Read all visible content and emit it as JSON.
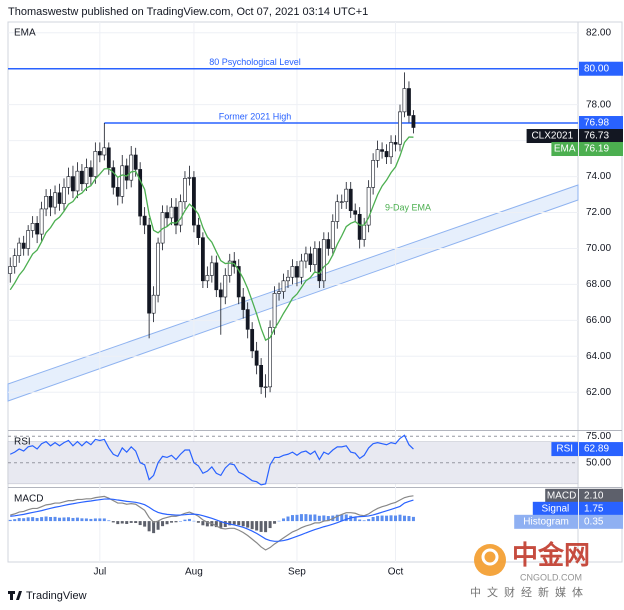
{
  "header": {
    "text": "Thomaswestw published on TradingView.com, Oct 07, 2021 03:14 UTC+1"
  },
  "footer": {
    "brand": "TradingView"
  },
  "watermark": {
    "name": "中金网",
    "site": "CNGOLD.COM",
    "tagline": "中文财经新媒体"
  },
  "chart_data": [
    {
      "type": "candlestick",
      "symbol": "CLX2021",
      "categories": [
        null,
        null,
        null,
        null,
        null,
        null,
        null,
        null,
        null,
        null,
        null,
        null,
        null,
        null,
        null,
        null,
        null,
        null,
        null,
        null,
        "Jul",
        null,
        null,
        null,
        null,
        null,
        null,
        null,
        null,
        null,
        null,
        null,
        null,
        null,
        null,
        null,
        null,
        null,
        null,
        null,
        null,
        "Aug",
        null,
        null,
        null,
        null,
        null,
        null,
        null,
        null,
        null,
        null,
        null,
        null,
        null,
        null,
        null,
        null,
        null,
        null,
        null,
        null,
        null,
        null,
        "Sep",
        null,
        null,
        null,
        null,
        null,
        null,
        null,
        null,
        null,
        null,
        null,
        null,
        null,
        null,
        null,
        null,
        null,
        null,
        null,
        null,
        null,
        "Oct",
        null,
        null,
        null,
        null
      ],
      "open": [
        68.6,
        69.0,
        69.6,
        70.3,
        70.0,
        71.0,
        71.4,
        70.8,
        72.2,
        72.9,
        72.3,
        73.1,
        72.5,
        73.4,
        74.0,
        73.2,
        74.3,
        73.6,
        74.5,
        74.0,
        75.4,
        75.2,
        75.6,
        74.5,
        73.4,
        72.9,
        74.6,
        73.8,
        75.2,
        74.4,
        71.8,
        71.3,
        66.4,
        67.4,
        70.3,
        72.0,
        71.7,
        72.3,
        71.3,
        72.6,
        73.9,
        73.95,
        71.3,
        70.6,
        68.2,
        68.5,
        69.2,
        67.7,
        67.3,
        68.5,
        69.3,
        69.0,
        67.3,
        66.6,
        65.5,
        64.3,
        63.5,
        62.3,
        62.3,
        65.6,
        67.5,
        67.6,
        68.2,
        68.4,
        69.0,
        68.4,
        69.3,
        69.7,
        69.1,
        70.0,
        68.2,
        70.5,
        70.0,
        71.5,
        72.6,
        72.6,
        73.3,
        72.1,
        71.9,
        70.5,
        71.3,
        73.4,
        74.9,
        75.5,
        75.4,
        75.1,
        75.9,
        75.8,
        77.6,
        78.9,
        77.4
      ],
      "high": [
        69.5,
        70.0,
        70.6,
        70.7,
        71.3,
        71.8,
        71.8,
        72.6,
        73.3,
        73.3,
        73.5,
        73.6,
        73.9,
        74.5,
        74.6,
        74.8,
        74.7,
        75.0,
        74.9,
        75.9,
        75.9,
        76.98,
        75.9,
        74.9,
        74.0,
        75.2,
        75.0,
        75.7,
        75.6,
        74.8,
        72.3,
        71.7,
        67.9,
        70.6,
        72.4,
        72.4,
        72.8,
        72.8,
        73.0,
        74.3,
        74.6,
        74.3,
        71.7,
        70.9,
        69.0,
        69.6,
        69.6,
        68.1,
        68.9,
        69.7,
        69.8,
        69.4,
        67.8,
        67.0,
        65.9,
        64.8,
        63.9,
        63.0,
        66.0,
        67.9,
        68.1,
        68.6,
        68.8,
        69.4,
        69.3,
        69.7,
        70.1,
        70.1,
        70.4,
        70.4,
        70.9,
        70.9,
        71.9,
        73.0,
        73.0,
        73.7,
        73.7,
        72.5,
        72.3,
        71.7,
        73.8,
        75.3,
        76.0,
        75.9,
        75.8,
        76.3,
        76.3,
        78.0,
        79.8,
        79.3,
        77.7
      ],
      "low": [
        68.1,
        68.6,
        69.2,
        69.6,
        69.6,
        70.6,
        70.3,
        70.4,
        71.8,
        71.8,
        71.9,
        72.1,
        72.1,
        73.0,
        72.8,
        72.8,
        73.2,
        73.2,
        73.5,
        73.6,
        74.8,
        74.9,
        74.1,
        73.0,
        72.4,
        72.5,
        73.3,
        73.4,
        74.0,
        71.3,
        70.8,
        65.0,
        65.9,
        67.0,
        69.9,
        71.2,
        71.3,
        70.8,
        70.9,
        72.2,
        73.5,
        70.9,
        70.2,
        67.8,
        67.8,
        68.1,
        67.3,
        65.2,
        66.9,
        68.1,
        68.6,
        66.9,
        66.1,
        65.0,
        63.9,
        63.0,
        61.9,
        61.7,
        62.0,
        65.2,
        67.1,
        67.2,
        67.8,
        68.0,
        67.9,
        68.0,
        68.9,
        68.7,
        68.7,
        67.8,
        67.8,
        69.6,
        69.6,
        71.1,
        72.2,
        72.2,
        71.7,
        71.5,
        70.0,
        70.1,
        70.9,
        73.0,
        74.5,
        75.0,
        74.7,
        74.7,
        75.4,
        75.4,
        77.3,
        77.0,
        76.4
      ],
      "close": [
        69.0,
        69.6,
        70.3,
        70.0,
        71.0,
        71.4,
        70.8,
        72.2,
        72.9,
        72.3,
        73.1,
        72.5,
        73.4,
        74.0,
        73.2,
        74.3,
        73.6,
        74.5,
        74.0,
        75.4,
        75.2,
        75.6,
        74.5,
        73.4,
        72.9,
        74.6,
        73.8,
        75.2,
        74.4,
        71.8,
        71.3,
        66.4,
        67.4,
        70.3,
        72.0,
        71.7,
        72.3,
        71.3,
        72.6,
        73.9,
        73.95,
        71.3,
        70.6,
        68.2,
        68.5,
        69.2,
        67.7,
        67.3,
        68.5,
        69.3,
        69.0,
        67.3,
        66.6,
        65.5,
        64.3,
        63.5,
        62.3,
        62.3,
        65.6,
        67.5,
        67.6,
        68.2,
        68.4,
        69.0,
        68.4,
        69.3,
        69.7,
        69.1,
        70.0,
        68.2,
        70.5,
        70.0,
        71.5,
        72.6,
        72.6,
        73.3,
        72.1,
        71.9,
        70.5,
        71.3,
        73.4,
        74.9,
        75.5,
        75.4,
        75.1,
        75.9,
        75.8,
        77.6,
        78.9,
        77.4,
        76.73
      ],
      "up_color": "#ffffff",
      "down_color": "#131722",
      "wick_color": "#131722",
      "series": [
        {
          "name": "EMA",
          "color": "#4caf50",
          "values": [
            67.7,
            68.08,
            68.52,
            68.82,
            69.26,
            69.69,
            69.91,
            70.37,
            70.88,
            71.16,
            71.55,
            71.74,
            72.07,
            72.46,
            72.61,
            72.95,
            73.08,
            73.36,
            73.49,
            73.87,
            74.14,
            74.43,
            74.44,
            74.23,
            73.96,
            74.09,
            74.03,
            74.26,
            74.29,
            73.79,
            73.29,
            71.91,
            71.01,
            70.87,
            71.1,
            71.22,
            71.44,
            71.41,
            71.65,
            72.1,
            72.47,
            72.24,
            71.91,
            71.17,
            70.64,
            70.35,
            69.82,
            69.32,
            69.16,
            69.19,
            69.15,
            68.78,
            68.34,
            67.77,
            67.08,
            66.36,
            65.55,
            64.9,
            65.04,
            65.53,
            65.94,
            66.39,
            66.79,
            67.23,
            67.46,
            67.83,
            68.2,
            68.38,
            68.7,
            68.6,
            68.98,
            69.18,
            69.64,
            70.23,
            70.7,
            71.22,
            71.4,
            71.5,
            71.3,
            71.3,
            71.72,
            72.36,
            72.99,
            73.47,
            73.8,
            74.22,
            74.54,
            75.15,
            75.9,
            76.2,
            76.19
          ]
        }
      ],
      "hlines": [
        {
          "value": 80,
          "label": "80.00",
          "text": "80 Psychological Level",
          "color": "#2962ff"
        },
        {
          "value": 76.98,
          "label": "76.98",
          "text": "Former 2021 High",
          "color": "#2962ff"
        }
      ],
      "annotations": [
        {
          "text": "9-Day EMA"
        }
      ],
      "ylim": [
        59.9,
        82.6
      ],
      "yticks": [
        {
          "value": 82,
          "label": "82.00"
        },
        {
          "value": 80,
          "label": "80.00"
        },
        {
          "value": 78,
          "label": "78.00"
        },
        {
          "value": 76,
          "label": "76.00"
        },
        {
          "value": 74,
          "label": "74.00"
        },
        {
          "value": 72,
          "label": "72.00"
        },
        {
          "value": 70,
          "label": "70.00"
        },
        {
          "value": 68,
          "label": "68.00"
        },
        {
          "value": 66,
          "label": "66.00"
        },
        {
          "value": 64,
          "label": "64.00"
        },
        {
          "value": 62,
          "label": "62.00"
        }
      ],
      "grid": true
    },
    {
      "type": "line",
      "series": [
        {
          "name": "RSI",
          "color": "#2962ff",
          "values": [
            58,
            60,
            63,
            61,
            65,
            66,
            63,
            68,
            70,
            66,
            69,
            66,
            69,
            71,
            66,
            70,
            66,
            70,
            67,
            72,
            71,
            72,
            64,
            58,
            56,
            64,
            60,
            65,
            61,
            50,
            48,
            34,
            38,
            50,
            56,
            55,
            57,
            53,
            58,
            62,
            62,
            50,
            47,
            40,
            42,
            46,
            40,
            38,
            45,
            49,
            48,
            41,
            39,
            36,
            33,
            32,
            29,
            30,
            48,
            55,
            55,
            57,
            58,
            60,
            57,
            60,
            61,
            58,
            61,
            53,
            60,
            58,
            62,
            65,
            65,
            66,
            60,
            59,
            54,
            57,
            64,
            68,
            69,
            68,
            67,
            69,
            68,
            73,
            76,
            67,
            62.89
          ]
        }
      ],
      "band": [
        30,
        70
      ],
      "ylim": [
        27,
        80
      ],
      "yticks": [
        {
          "value": 75,
          "label": "75.00"
        },
        {
          "value": 50,
          "label": "50.00"
        }
      ]
    },
    {
      "type": "macd",
      "series": [
        {
          "name": "MACD",
          "color": "#888888",
          "last_label": "2.10",
          "values": [
            0.5,
            0.6,
            0.75,
            0.8,
            0.95,
            1.05,
            1.05,
            1.2,
            1.35,
            1.4,
            1.5,
            1.5,
            1.6,
            1.7,
            1.7,
            1.8,
            1.8,
            1.85,
            1.85,
            1.95,
            2.0,
            2.05,
            1.9,
            1.7,
            1.5,
            1.5,
            1.4,
            1.45,
            1.4,
            1.15,
            0.9,
            0.3,
            -0.1,
            0.0,
            0.2,
            0.3,
            0.4,
            0.4,
            0.5,
            0.65,
            0.75,
            0.6,
            0.4,
            0.1,
            -0.1,
            -0.2,
            -0.4,
            -0.6,
            -0.65,
            -0.6,
            -0.6,
            -0.75,
            -0.95,
            -1.2,
            -1.5,
            -1.8,
            -2.15,
            -2.4,
            -2.2,
            -1.9,
            -1.65,
            -1.4,
            -1.15,
            -0.9,
            -0.75,
            -0.55,
            -0.4,
            -0.3,
            -0.15,
            -0.15,
            0.0,
            0.05,
            0.2,
            0.4,
            0.55,
            0.7,
            0.7,
            0.65,
            0.5,
            0.45,
            0.6,
            0.85,
            1.05,
            1.2,
            1.3,
            1.45,
            1.55,
            1.75,
            1.95,
            2.05,
            2.1
          ]
        },
        {
          "name": "Signal",
          "color": "#2962ff",
          "values": [
            0.4,
            0.44,
            0.5,
            0.56,
            0.64,
            0.72,
            0.79,
            0.87,
            0.97,
            1.06,
            1.15,
            1.22,
            1.3,
            1.38,
            1.44,
            1.51,
            1.57,
            1.63,
            1.67,
            1.73,
            1.78,
            1.83,
            1.84,
            1.81,
            1.75,
            1.7,
            1.64,
            1.6,
            1.56,
            1.48,
            1.36,
            1.15,
            0.9,
            0.72,
            0.62,
            0.56,
            0.53,
            0.5,
            0.5,
            0.53,
            0.57,
            0.58,
            0.54,
            0.45,
            0.34,
            0.23,
            0.1,
            -0.04,
            -0.16,
            -0.25,
            -0.32,
            -0.41,
            -0.52,
            -0.66,
            -0.83,
            -1.02,
            -1.25,
            -1.48,
            -1.62,
            -1.68,
            -1.67,
            -1.62,
            -1.53,
            -1.4,
            -1.27,
            -1.13,
            -0.98,
            -0.84,
            -0.7,
            -0.59,
            -0.47,
            -0.37,
            -0.26,
            -0.13,
            0.01,
            0.15,
            0.26,
            0.34,
            0.37,
            0.39,
            0.43,
            0.51,
            0.62,
            0.74,
            0.85,
            0.97,
            1.09,
            1.22,
            1.5,
            1.63,
            1.75
          ]
        },
        {
          "name": "Histogram",
          "color": "#5b8def",
          "negative_color": "#5d606b",
          "values": [
            0.1,
            0.16,
            0.25,
            0.24,
            0.31,
            0.33,
            0.26,
            0.33,
            0.38,
            0.34,
            0.35,
            0.28,
            0.3,
            0.32,
            0.26,
            0.29,
            0.23,
            0.22,
            0.18,
            0.22,
            0.22,
            0.22,
            0.06,
            -0.11,
            -0.25,
            -0.2,
            -0.24,
            -0.15,
            -0.16,
            -0.33,
            -0.46,
            -0.85,
            -1.0,
            -0.72,
            -0.42,
            -0.26,
            -0.13,
            -0.1,
            0.0,
            0.12,
            0.18,
            0.02,
            -0.14,
            -0.35,
            -0.44,
            -0.43,
            -0.5,
            -0.56,
            -0.49,
            -0.35,
            -0.28,
            -0.34,
            -0.43,
            -0.54,
            -0.67,
            -0.78,
            -0.9,
            -0.92,
            -0.58,
            -0.22,
            0.02,
            0.22,
            0.38,
            0.5,
            0.52,
            0.58,
            0.58,
            0.54,
            0.55,
            0.44,
            0.47,
            0.42,
            0.46,
            0.53,
            0.54,
            0.55,
            0.44,
            0.31,
            0.13,
            0.06,
            0.17,
            0.34,
            0.43,
            0.46,
            0.45,
            0.48,
            0.46,
            0.53,
            0.45,
            0.42,
            0.35
          ]
        }
      ],
      "ylim": [
        -3.4,
        2.75
      ]
    }
  ]
}
